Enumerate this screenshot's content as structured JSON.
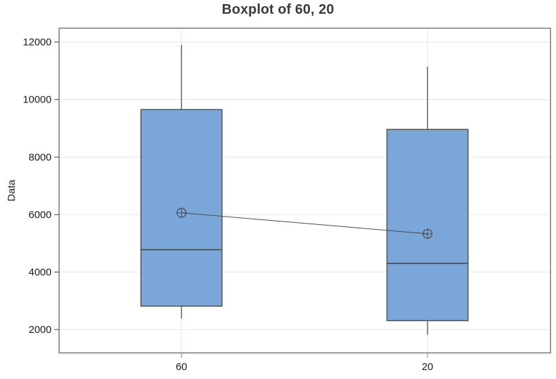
{
  "chart_data": {
    "type": "boxplot",
    "title": "Boxplot of 60, 20",
    "xlabel": "",
    "ylabel": "Data",
    "categories": [
      "60",
      "20"
    ],
    "yticks": [
      2000,
      4000,
      6000,
      8000,
      10000,
      12000
    ],
    "ylim": [
      1190,
      12480
    ],
    "grid": "horizontal gridlines at y ticks, vertical gridline at each category",
    "legend_position": "none",
    "category_pos": [
      0.249,
      0.7497
    ],
    "box_width_frac": 0.165,
    "mean_connect_line": true,
    "boxes": [
      {
        "category": "60",
        "whisker_low": 2385,
        "q1": 2815,
        "median": 4780,
        "q3": 9650,
        "whisker_high": 11900,
        "mean": 6060
      },
      {
        "category": "20",
        "whisker_low": 1810,
        "q1": 2310,
        "median": 4300,
        "q3": 8960,
        "whisker_high": 11140,
        "mean": 5330
      }
    ],
    "colors": {
      "box_fill": "#7BA6D9",
      "box_stroke": "#4a4a4a",
      "grid": "#e5e5e5",
      "plot_border": "#7a7a7a",
      "title_text": "#3a3a3a",
      "axis_text": "#1a1a1a",
      "y_tick": "#3c3c3c",
      "x_tick": "#8a8a8a"
    }
  }
}
